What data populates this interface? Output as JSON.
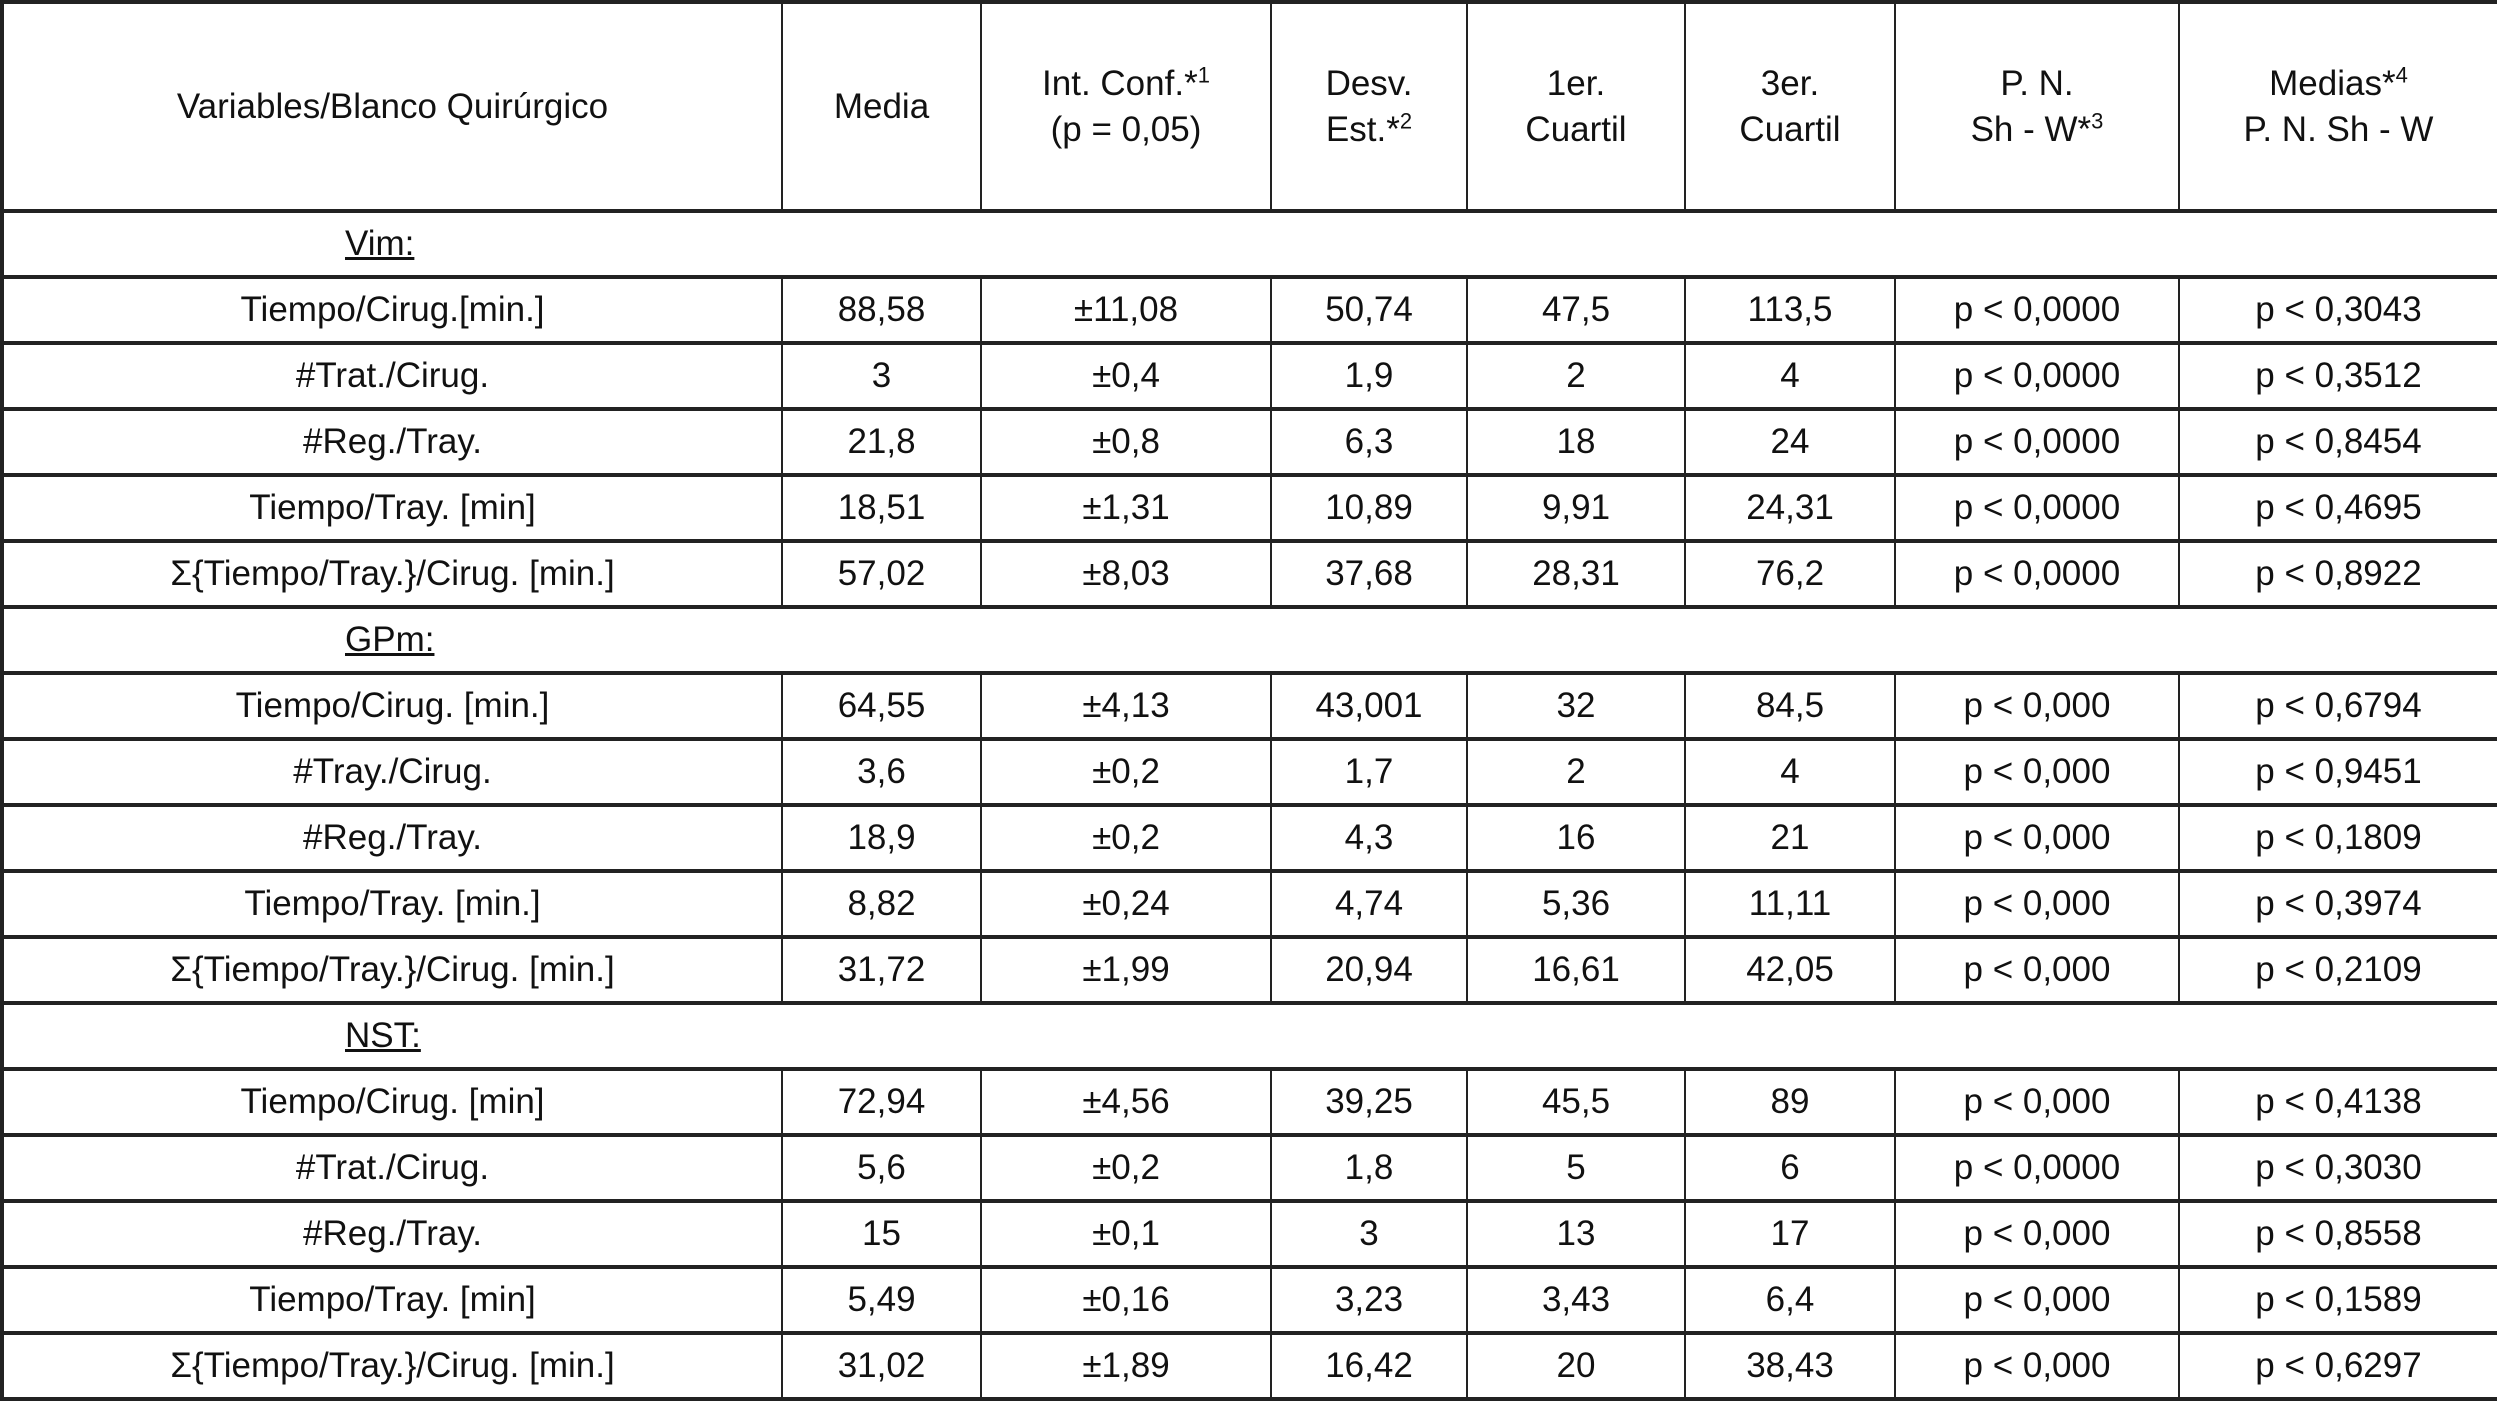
{
  "headers": [
    {
      "line1": "Variables/Blanco Quirúrgico",
      "line2": "",
      "sup": ""
    },
    {
      "line1": "Media",
      "line2": "",
      "sup": ""
    },
    {
      "line1": "Int. Conf.*",
      "line2": "(p = 0,05)",
      "sup": "1"
    },
    {
      "line1": "Desv.",
      "line2": "Est.*",
      "sup": "2"
    },
    {
      "line1": "1er.",
      "line2": "Cuartil",
      "sup": ""
    },
    {
      "line1": "3er.",
      "line2": "Cuartil",
      "sup": ""
    },
    {
      "line1": "P. N.",
      "line2": "Sh - W*",
      "sup": "3"
    },
    {
      "line1": "Medias*",
      "line2": "P. N. Sh - W",
      "sup": "4"
    }
  ],
  "sections": [
    {
      "title": "Vim:",
      "rows": [
        [
          "Tiempo/Cirug.[min.]",
          "88,58",
          "±11,08",
          "50,74",
          "47,5",
          "113,5",
          "p < 0,0000",
          "p < 0,3043"
        ],
        [
          "#Trat./Cirug.",
          "3",
          "±0,4",
          "1,9",
          "2",
          "4",
          "p < 0,0000",
          "p < 0,3512"
        ],
        [
          "#Reg./Tray.",
          "21,8",
          "±0,8",
          "6,3",
          "18",
          "24",
          "p < 0,0000",
          "p < 0,8454"
        ],
        [
          "Tiempo/Tray. [min]",
          "18,51",
          "±1,31",
          "10,89",
          "9,91",
          "24,31",
          "p < 0,0000",
          "p < 0,4695"
        ],
        [
          "Σ{Tiempo/Tray.}/Cirug. [min.]",
          "57,02",
          "±8,03",
          "37,68",
          "28,31",
          "76,2",
          "p < 0,0000",
          "p < 0,8922"
        ]
      ]
    },
    {
      "title": "GPm:",
      "rows": [
        [
          "Tiempo/Cirug. [min.]",
          "64,55",
          "±4,13",
          "43,001",
          "32",
          "84,5",
          "p < 0,000",
          "p < 0,6794"
        ],
        [
          "#Tray./Cirug.",
          "3,6",
          "±0,2",
          "1,7",
          "2",
          "4",
          "p < 0,000",
          "p < 0,9451"
        ],
        [
          "#Reg./Tray.",
          "18,9",
          "±0,2",
          "4,3",
          "16",
          "21",
          "p < 0,000",
          "p < 0,1809"
        ],
        [
          "Tiempo/Tray. [min.]",
          "8,82",
          "±0,24",
          "4,74",
          "5,36",
          "11,11",
          "p < 0,000",
          "p < 0,3974"
        ],
        [
          "Σ{Tiempo/Tray.}/Cirug. [min.]",
          "31,72",
          "±1,99",
          "20,94",
          "16,61",
          "42,05",
          "p < 0,000",
          "p < 0,2109"
        ]
      ]
    },
    {
      "title": "NST:",
      "rows": [
        [
          "Tiempo/Cirug. [min]",
          "72,94",
          "±4,56",
          "39,25",
          "45,5",
          "89",
          "p < 0,000",
          "p < 0,4138"
        ],
        [
          "#Trat./Cirug.",
          "5,6",
          "±0,2",
          "1,8",
          "5",
          "6",
          "p < 0,0000",
          "p < 0,3030"
        ],
        [
          "#Reg./Tray.",
          "15",
          "±0,1",
          "3",
          "13",
          "17",
          "p < 0,000",
          "p < 0,8558"
        ],
        [
          "Tiempo/Tray. [min]",
          "5,49",
          "±0,16",
          "3,23",
          "3,43",
          "6,4",
          "p < 0,000",
          "p < 0,1589"
        ],
        [
          "Σ{Tiempo/Tray.}/Cirug. [min.]",
          "31,02",
          "±1,89",
          "16,42",
          "20",
          "38,43",
          "p < 0,000",
          "p < 0,6297"
        ]
      ]
    }
  ]
}
